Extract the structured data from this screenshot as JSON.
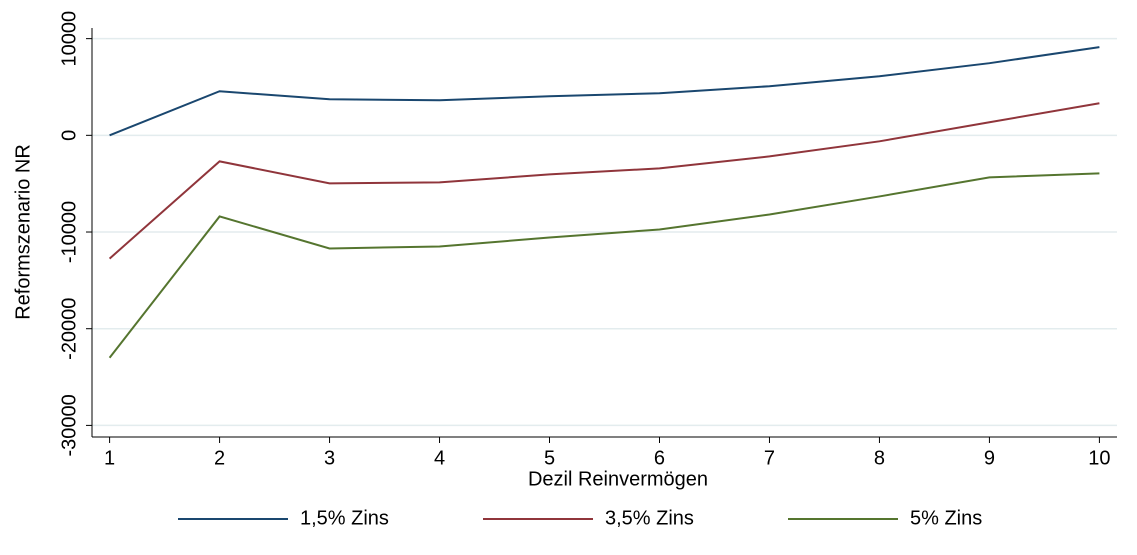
{
  "chart_data": {
    "type": "line",
    "x_label": "Dezil Reinvermögen",
    "y_label": "Reformszenario  NR",
    "x": [
      1,
      2,
      3,
      4,
      5,
      6,
      7,
      8,
      9,
      10
    ],
    "xlim": [
      0.84,
      10.16
    ],
    "xticks": [
      1,
      2,
      3,
      4,
      5,
      6,
      7,
      8,
      9,
      10
    ],
    "ylim": [
      -31200,
      11100
    ],
    "yticks": [
      -30000,
      -20000,
      -10000,
      0,
      10000
    ],
    "grid": true,
    "legend": "bottom",
    "series": [
      {
        "name": "1,5% Zins",
        "color": "#1a476f",
        "values": [
          0,
          4560,
          3730,
          3630,
          4040,
          4350,
          5080,
          6110,
          7460,
          9120
        ]
      },
      {
        "name": "3,5% Zins",
        "color": "#90353b",
        "values": [
          -12750,
          -2690,
          -4970,
          -4870,
          -4040,
          -3420,
          -2180,
          -620,
          1350,
          3320
        ]
      },
      {
        "name": "5% Zins",
        "color": "#55752f",
        "values": [
          -23000,
          -8390,
          -11700,
          -11500,
          -10570,
          -9740,
          -8190,
          -6320,
          -4350,
          -3940
        ]
      }
    ]
  }
}
